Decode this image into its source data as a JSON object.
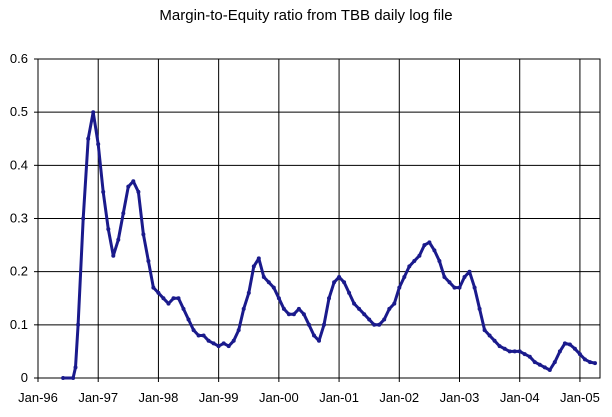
{
  "chart_data": {
    "type": "line",
    "title": "Margin-to-Equity ratio from TBB daily log file",
    "xlabel": "",
    "ylabel": "",
    "x_ticks": [
      "Jan-96",
      "Jan-97",
      "Jan-98",
      "Jan-99",
      "Jan-00",
      "Jan-01",
      "Jan-02",
      "Jan-03",
      "Jan-04",
      "Jan-05"
    ],
    "y_ticks": [
      "0",
      "0.1",
      "0.2",
      "0.3",
      "0.4",
      "0.5",
      "0.6"
    ],
    "xlim": [
      "1996-01",
      "2005-05"
    ],
    "ylim": [
      0,
      0.6
    ],
    "grid": "both",
    "legend": "none",
    "line_color": "#1a1a8c",
    "series": [
      {
        "name": "",
        "points": [
          [
            "1996-06",
            0.0
          ],
          [
            "1996-08",
            0.0
          ],
          [
            "1996-08-15",
            0.02
          ],
          [
            "1996-09",
            0.1
          ],
          [
            "1996-10",
            0.3
          ],
          [
            "1996-11",
            0.45
          ],
          [
            "1996-12",
            0.5
          ],
          [
            "1997-01",
            0.44
          ],
          [
            "1997-02",
            0.35
          ],
          [
            "1997-03",
            0.28
          ],
          [
            "1997-04",
            0.23
          ],
          [
            "1997-05",
            0.26
          ],
          [
            "1997-06",
            0.31
          ],
          [
            "1997-07",
            0.36
          ],
          [
            "1997-08",
            0.37
          ],
          [
            "1997-09",
            0.35
          ],
          [
            "1997-10",
            0.27
          ],
          [
            "1997-11",
            0.22
          ],
          [
            "1997-12",
            0.17
          ],
          [
            "1998-01",
            0.16
          ],
          [
            "1998-02",
            0.15
          ],
          [
            "1998-03",
            0.14
          ],
          [
            "1998-04",
            0.15
          ],
          [
            "1998-05",
            0.15
          ],
          [
            "1998-06",
            0.13
          ],
          [
            "1998-07",
            0.11
          ],
          [
            "1998-08",
            0.09
          ],
          [
            "1998-09",
            0.08
          ],
          [
            "1998-10",
            0.08
          ],
          [
            "1998-11",
            0.07
          ],
          [
            "1998-12",
            0.065
          ],
          [
            "1999-01",
            0.06
          ],
          [
            "1999-02",
            0.065
          ],
          [
            "1999-03",
            0.06
          ],
          [
            "1999-04",
            0.07
          ],
          [
            "1999-05",
            0.09
          ],
          [
            "1999-06",
            0.13
          ],
          [
            "1999-07",
            0.16
          ],
          [
            "1999-08",
            0.21
          ],
          [
            "1999-09",
            0.225
          ],
          [
            "1999-10",
            0.19
          ],
          [
            "1999-11",
            0.18
          ],
          [
            "1999-12",
            0.17
          ],
          [
            "2000-01",
            0.15
          ],
          [
            "2000-02",
            0.13
          ],
          [
            "2000-03",
            0.12
          ],
          [
            "2000-04",
            0.12
          ],
          [
            "2000-05",
            0.13
          ],
          [
            "2000-06",
            0.12
          ],
          [
            "2000-07",
            0.1
          ],
          [
            "2000-08",
            0.08
          ],
          [
            "2000-09",
            0.07
          ],
          [
            "2000-10",
            0.1
          ],
          [
            "2000-11",
            0.15
          ],
          [
            "2000-12",
            0.18
          ],
          [
            "2001-01",
            0.19
          ],
          [
            "2001-02",
            0.18
          ],
          [
            "2001-03",
            0.16
          ],
          [
            "2001-04",
            0.14
          ],
          [
            "2001-05",
            0.13
          ],
          [
            "2001-06",
            0.12
          ],
          [
            "2001-07",
            0.11
          ],
          [
            "2001-08",
            0.1
          ],
          [
            "2001-09",
            0.1
          ],
          [
            "2001-10",
            0.11
          ],
          [
            "2001-11",
            0.13
          ],
          [
            "2001-12",
            0.14
          ],
          [
            "2002-01",
            0.17
          ],
          [
            "2002-02",
            0.19
          ],
          [
            "2002-03",
            0.21
          ],
          [
            "2002-04",
            0.22
          ],
          [
            "2002-05",
            0.23
          ],
          [
            "2002-06",
            0.25
          ],
          [
            "2002-07",
            0.255
          ],
          [
            "2002-08",
            0.24
          ],
          [
            "2002-09",
            0.22
          ],
          [
            "2002-10",
            0.19
          ],
          [
            "2002-11",
            0.18
          ],
          [
            "2002-12",
            0.17
          ],
          [
            "2003-01",
            0.17
          ],
          [
            "2003-02",
            0.19
          ],
          [
            "2003-03",
            0.2
          ],
          [
            "2003-04",
            0.17
          ],
          [
            "2003-05",
            0.13
          ],
          [
            "2003-06",
            0.09
          ],
          [
            "2003-07",
            0.08
          ],
          [
            "2003-08",
            0.07
          ],
          [
            "2003-09",
            0.06
          ],
          [
            "2003-10",
            0.055
          ],
          [
            "2003-11",
            0.05
          ],
          [
            "2003-12",
            0.05
          ],
          [
            "2004-01",
            0.05
          ],
          [
            "2004-02",
            0.045
          ],
          [
            "2004-03",
            0.04
          ],
          [
            "2004-04",
            0.03
          ],
          [
            "2004-05",
            0.025
          ],
          [
            "2004-06",
            0.02
          ],
          [
            "2004-07",
            0.015
          ],
          [
            "2004-08",
            0.03
          ],
          [
            "2004-09",
            0.05
          ],
          [
            "2004-10",
            0.065
          ],
          [
            "2004-11",
            0.063
          ],
          [
            "2004-12",
            0.055
          ],
          [
            "2005-01",
            0.045
          ],
          [
            "2005-02",
            0.035
          ],
          [
            "2005-03",
            0.03
          ],
          [
            "2005-04",
            0.028
          ]
        ]
      }
    ]
  }
}
